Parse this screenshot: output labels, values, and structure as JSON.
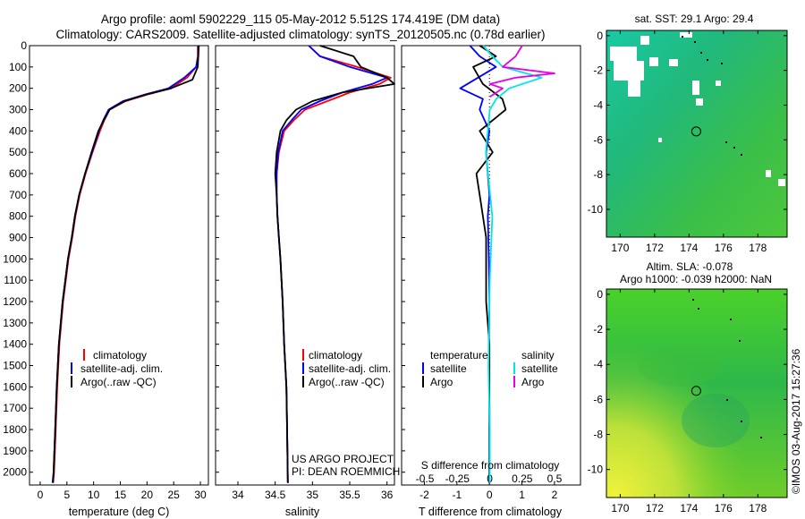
{
  "header": {
    "title1": "Argo profile: aoml 5902229_115 05-May-2012 5.512S 174.419E (DM data)",
    "title2": "Climatology: CARS2009. Satellite-adjusted climatology: synTS_20120505.nc (0.78d earlier)"
  },
  "colors": {
    "climatology": "#ff0000",
    "satellite": "#0000ff",
    "argo": "#000000",
    "sal_satellite": "#00e5e5",
    "sal_argo": "#e600e6"
  },
  "chart_data": [
    {
      "type": "line",
      "title": "",
      "xlabel": "temperature (deg C)",
      "ylabel": "",
      "xlim": [
        -2,
        31.5
      ],
      "ylim": [
        2060,
        0
      ],
      "xticks": [
        0,
        5,
        10,
        15,
        20,
        25,
        30
      ],
      "yticks": [
        0,
        100,
        200,
        300,
        400,
        500,
        600,
        700,
        800,
        900,
        1000,
        1100,
        1200,
        1300,
        1400,
        1500,
        1600,
        1700,
        1800,
        1900,
        2000
      ],
      "legend": [
        "climatology",
        "satellite-adj. clim.",
        "Argo(..raw -QC)"
      ],
      "series": [
        {
          "name": "climatology",
          "x": [
            29.5,
            29.5,
            29.2,
            27.5,
            24.5,
            20,
            16,
            13,
            12,
            11.2,
            9.8,
            8.5,
            7.4,
            6.6,
            6,
            5.3,
            4.8,
            4.3,
            3.6,
            3.2,
            2.9,
            2.6,
            2.4
          ],
          "y": [
            0,
            50,
            100,
            150,
            200,
            230,
            260,
            300,
            350,
            400,
            500,
            600,
            700,
            800,
            900,
            1000,
            1100,
            1200,
            1400,
            1600,
            1800,
            2000,
            2050
          ]
        },
        {
          "name": "satellite-adj. clim.",
          "x": [
            29.6,
            29.6,
            29.2,
            27,
            24,
            19.5,
            15.5,
            12.8,
            11.8,
            11,
            9.7,
            8.4,
            7.3,
            6.5,
            5.9,
            5.2,
            4.7,
            4.2,
            3.5,
            3.1,
            2.8,
            2.5,
            2.3
          ],
          "y": [
            0,
            50,
            100,
            150,
            200,
            230,
            260,
            300,
            350,
            400,
            500,
            600,
            700,
            800,
            900,
            1000,
            1100,
            1200,
            1400,
            1600,
            1800,
            2000,
            2050
          ]
        },
        {
          "name": "Argo(..raw -QC)",
          "x": [
            29.7,
            29.6,
            29.5,
            28.5,
            24.5,
            19.8,
            15.8,
            13,
            11.9,
            10.9,
            9.6,
            8.4,
            7.3,
            6.5,
            5.9,
            5.2,
            4.7,
            4.2,
            3.5,
            3.1,
            2.8,
            2.5,
            2.4
          ],
          "y": [
            0,
            50,
            100,
            160,
            200,
            230,
            260,
            300,
            350,
            400,
            500,
            600,
            700,
            800,
            900,
            1000,
            1100,
            1200,
            1400,
            1600,
            1800,
            2000,
            2050
          ]
        }
      ]
    },
    {
      "type": "line",
      "xlabel": "salinity",
      "xlim": [
        33.7,
        36.1
      ],
      "ylim": [
        2060,
        0
      ],
      "xticks": [
        34,
        34.5,
        35,
        35.5,
        36
      ],
      "legend": [
        "climatology",
        "satellite-adj. clim.",
        "Argo(..raw -QC)"
      ],
      "annotation": [
        "US ARGO PROJECT",
        "PI: DEAN ROEMMICH"
      ],
      "series": [
        {
          "name": "climatology",
          "x": [
            34.95,
            35.1,
            35.6,
            36.05,
            35.9,
            35.5,
            35.2,
            34.9,
            34.75,
            34.62,
            34.55,
            34.52,
            34.52,
            34.53,
            34.55,
            34.57,
            34.6,
            34.62,
            34.65,
            34.66,
            34.67
          ],
          "y": [
            0,
            50,
            100,
            150,
            180,
            220,
            260,
            300,
            350,
            400,
            500,
            600,
            700,
            800,
            900,
            1000,
            1200,
            1400,
            1600,
            1800,
            2050
          ]
        },
        {
          "name": "satellite-adj. clim.",
          "x": [
            34.95,
            35.1,
            35.5,
            36.0,
            35.8,
            35.4,
            35.1,
            34.85,
            34.72,
            34.6,
            34.54,
            34.52,
            34.52,
            34.53,
            34.55,
            34.57,
            34.6,
            34.62,
            34.65,
            34.66,
            34.67
          ],
          "y": [
            0,
            50,
            100,
            150,
            180,
            220,
            260,
            300,
            350,
            400,
            500,
            600,
            700,
            800,
            900,
            1000,
            1200,
            1400,
            1600,
            1800,
            2050
          ]
        },
        {
          "name": "Argo(..raw -QC)",
          "x": [
            35.1,
            35.55,
            35.65,
            36.0,
            36.1,
            35.4,
            35.0,
            34.78,
            34.65,
            34.57,
            34.52,
            34.5,
            34.52,
            34.53,
            34.55,
            34.57,
            34.6,
            34.62,
            34.65,
            34.66,
            34.67
          ],
          "y": [
            0,
            50,
            100,
            150,
            180,
            220,
            260,
            300,
            350,
            400,
            500,
            600,
            700,
            800,
            900,
            1000,
            1200,
            1400,
            1600,
            1800,
            2050
          ]
        }
      ]
    },
    {
      "type": "line",
      "xlabel": "T difference from climatology",
      "xlabel_top": "S difference from climatology",
      "xlim_T": [
        -2.7,
        2.8
      ],
      "xlim_S": [
        -0.68,
        0.7
      ],
      "ylim": [
        2060,
        0
      ],
      "xticks_T": [
        -2,
        -1,
        0,
        1,
        2
      ],
      "xticks_S": [
        -0.5,
        -0.25,
        0,
        0.25,
        0.5
      ],
      "xticklabels_S": [
        "-0.5",
        "-0.25",
        "0",
        "0.25",
        "0.5"
      ],
      "legend_temperature": [
        "temperature",
        "satellite",
        "Argo"
      ],
      "legend_salinity": [
        "salinity",
        "satellite",
        "Argo"
      ],
      "series": [
        {
          "name": "temperature satellite",
          "axis": "T",
          "x": [
            -0.6,
            -0.3,
            0.2,
            -0.9,
            -0.2,
            -0.3,
            0.0,
            -0.1,
            0,
            -0.05,
            -0.02,
            0,
            -0.02,
            0,
            0,
            0
          ],
          "y": [
            0,
            50,
            100,
            200,
            250,
            300,
            400,
            500,
            700,
            800,
            1000,
            1200,
            1500,
            1700,
            1900,
            2050
          ]
        },
        {
          "name": "temperature Argo",
          "axis": "T",
          "x": [
            -0.3,
            0.2,
            -0.5,
            -0.2,
            0.4,
            0.5,
            -0.3,
            0.1,
            -0.4,
            -0.3,
            -0.1,
            -0.1,
            0,
            0,
            0
          ],
          "y": [
            0,
            50,
            100,
            180,
            250,
            300,
            400,
            500,
            600,
            700,
            900,
            1200,
            1400,
            1700,
            2050
          ]
        },
        {
          "name": "salinity satellite",
          "axis": "S",
          "x": [
            -0.05,
            0.02,
            0.1,
            0.4,
            0.15,
            0.05,
            0.0,
            -0.03,
            0.02,
            0.0,
            -0.01,
            0,
            0
          ],
          "y": [
            0,
            50,
            100,
            150,
            200,
            250,
            300,
            500,
            800,
            1100,
            1500,
            1800,
            2050
          ]
        },
        {
          "name": "salinity Argo",
          "axis": "S",
          "x": [
            0.25,
            0.2,
            0.1,
            0.5,
            0.2,
            0.0,
            0.1,
            0.0
          ],
          "y": [
            0,
            50,
            100,
            130,
            150,
            180,
            200,
            240
          ]
        }
      ]
    },
    {
      "type": "heatmap",
      "title": "sat. SST: 29.1  Argo: 29.4",
      "xlim": [
        169.2,
        179.7
      ],
      "ylim": [
        -11.6,
        0.3
      ],
      "xticks": [
        170,
        172,
        174,
        176,
        178
      ],
      "yticks": [
        0,
        -2,
        -4,
        -6,
        -8,
        -10
      ],
      "marker": {
        "lon": 174.419,
        "lat": -5.512
      }
    },
    {
      "type": "heatmap",
      "title": "Altim. SLA: -0.078",
      "subtitle": "Argo h1000: -0.039 h2000: NaN",
      "xlim": [
        169.2,
        179.7
      ],
      "ylim": [
        -11.6,
        0.3
      ],
      "xticks": [
        170,
        172,
        174,
        176,
        178
      ],
      "yticks": [
        0,
        -2,
        -4,
        -6,
        -8,
        -10
      ],
      "marker": {
        "lon": 174.419,
        "lat": -5.512
      }
    }
  ],
  "footer": {
    "stamp": "©IMOS 03-Aug-2017 15:27:36"
  }
}
